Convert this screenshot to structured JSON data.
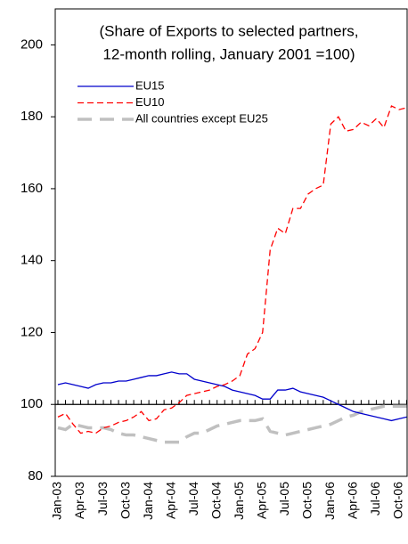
{
  "chart_data": {
    "type": "line",
    "title": [
      "(Share of Exports to selected partners,",
      "12-month rolling, January 2001 =100)"
    ],
    "categories": [
      "Jan-03",
      null,
      null,
      "Apr-03",
      null,
      null,
      "Jul-03",
      null,
      null,
      "Oct-03",
      null,
      null,
      "Jan-04",
      null,
      null,
      "Apr-04",
      null,
      null,
      "Jul-04",
      null,
      null,
      "Oct-04",
      null,
      null,
      "Jan-05",
      null,
      null,
      "Apr-05",
      null,
      null,
      "Jul-05",
      null,
      null,
      "Oct-05",
      null,
      null,
      "Jan-06",
      null,
      null,
      "Apr-06",
      null,
      null,
      "Jul-06",
      null,
      null,
      "Oct-06",
      null
    ],
    "series": [
      {
        "name": "EU15",
        "color": "#0000cc",
        "dash": "solid",
        "values": [
          105.5,
          106,
          105.5,
          105,
          104.5,
          105.5,
          106,
          106,
          106.5,
          106.5,
          107,
          107.5,
          108,
          108,
          108.5,
          109,
          108.5,
          108.5,
          107,
          106.5,
          106,
          105.5,
          105,
          104,
          103.5,
          103,
          102.5,
          101.5,
          101.5,
          104,
          104,
          104.5,
          103.5,
          103,
          102.5,
          102,
          101,
          100,
          99,
          98,
          97.5,
          97,
          96.5,
          96,
          95.5,
          96,
          96.5
        ]
      },
      {
        "name": "EU10",
        "color": "#ff0000",
        "dash": "dashed",
        "values": [
          96.5,
          97.5,
          94.5,
          92,
          92.5,
          92,
          93.5,
          94,
          95,
          95.5,
          96.5,
          98,
          95.5,
          96,
          98.5,
          99,
          100.5,
          102.5,
          103,
          103.5,
          104,
          105,
          105.5,
          106.5,
          108,
          114,
          115.5,
          120,
          143,
          149,
          147.5,
          154.5,
          154.5,
          158.5,
          160,
          161,
          178,
          180,
          176,
          176.5,
          178.5,
          177.5,
          179.5,
          177,
          183,
          182,
          182.5
        ]
      },
      {
        "name": "All countries except EU25",
        "color": "#c0c0c0",
        "dash": "long-dashed",
        "values": [
          93.5,
          93,
          94.5,
          94,
          93.5,
          93.5,
          93.5,
          93,
          92,
          91.5,
          91.5,
          91,
          90.5,
          90,
          89.5,
          89.5,
          89.5,
          91,
          92,
          92,
          93,
          94,
          94.5,
          95,
          95.5,
          95.5,
          95.5,
          96,
          92.5,
          92,
          91.5,
          92,
          92.5,
          93,
          93.5,
          94,
          94.5,
          95.5,
          96.5,
          97,
          98,
          98.5,
          99,
          99.5,
          99.5,
          99.5,
          99.5
        ]
      }
    ],
    "ylim": [
      80,
      210
    ],
    "yticks": [
      80,
      100,
      120,
      140,
      160,
      180,
      200
    ],
    "x_axis_at": 100
  }
}
